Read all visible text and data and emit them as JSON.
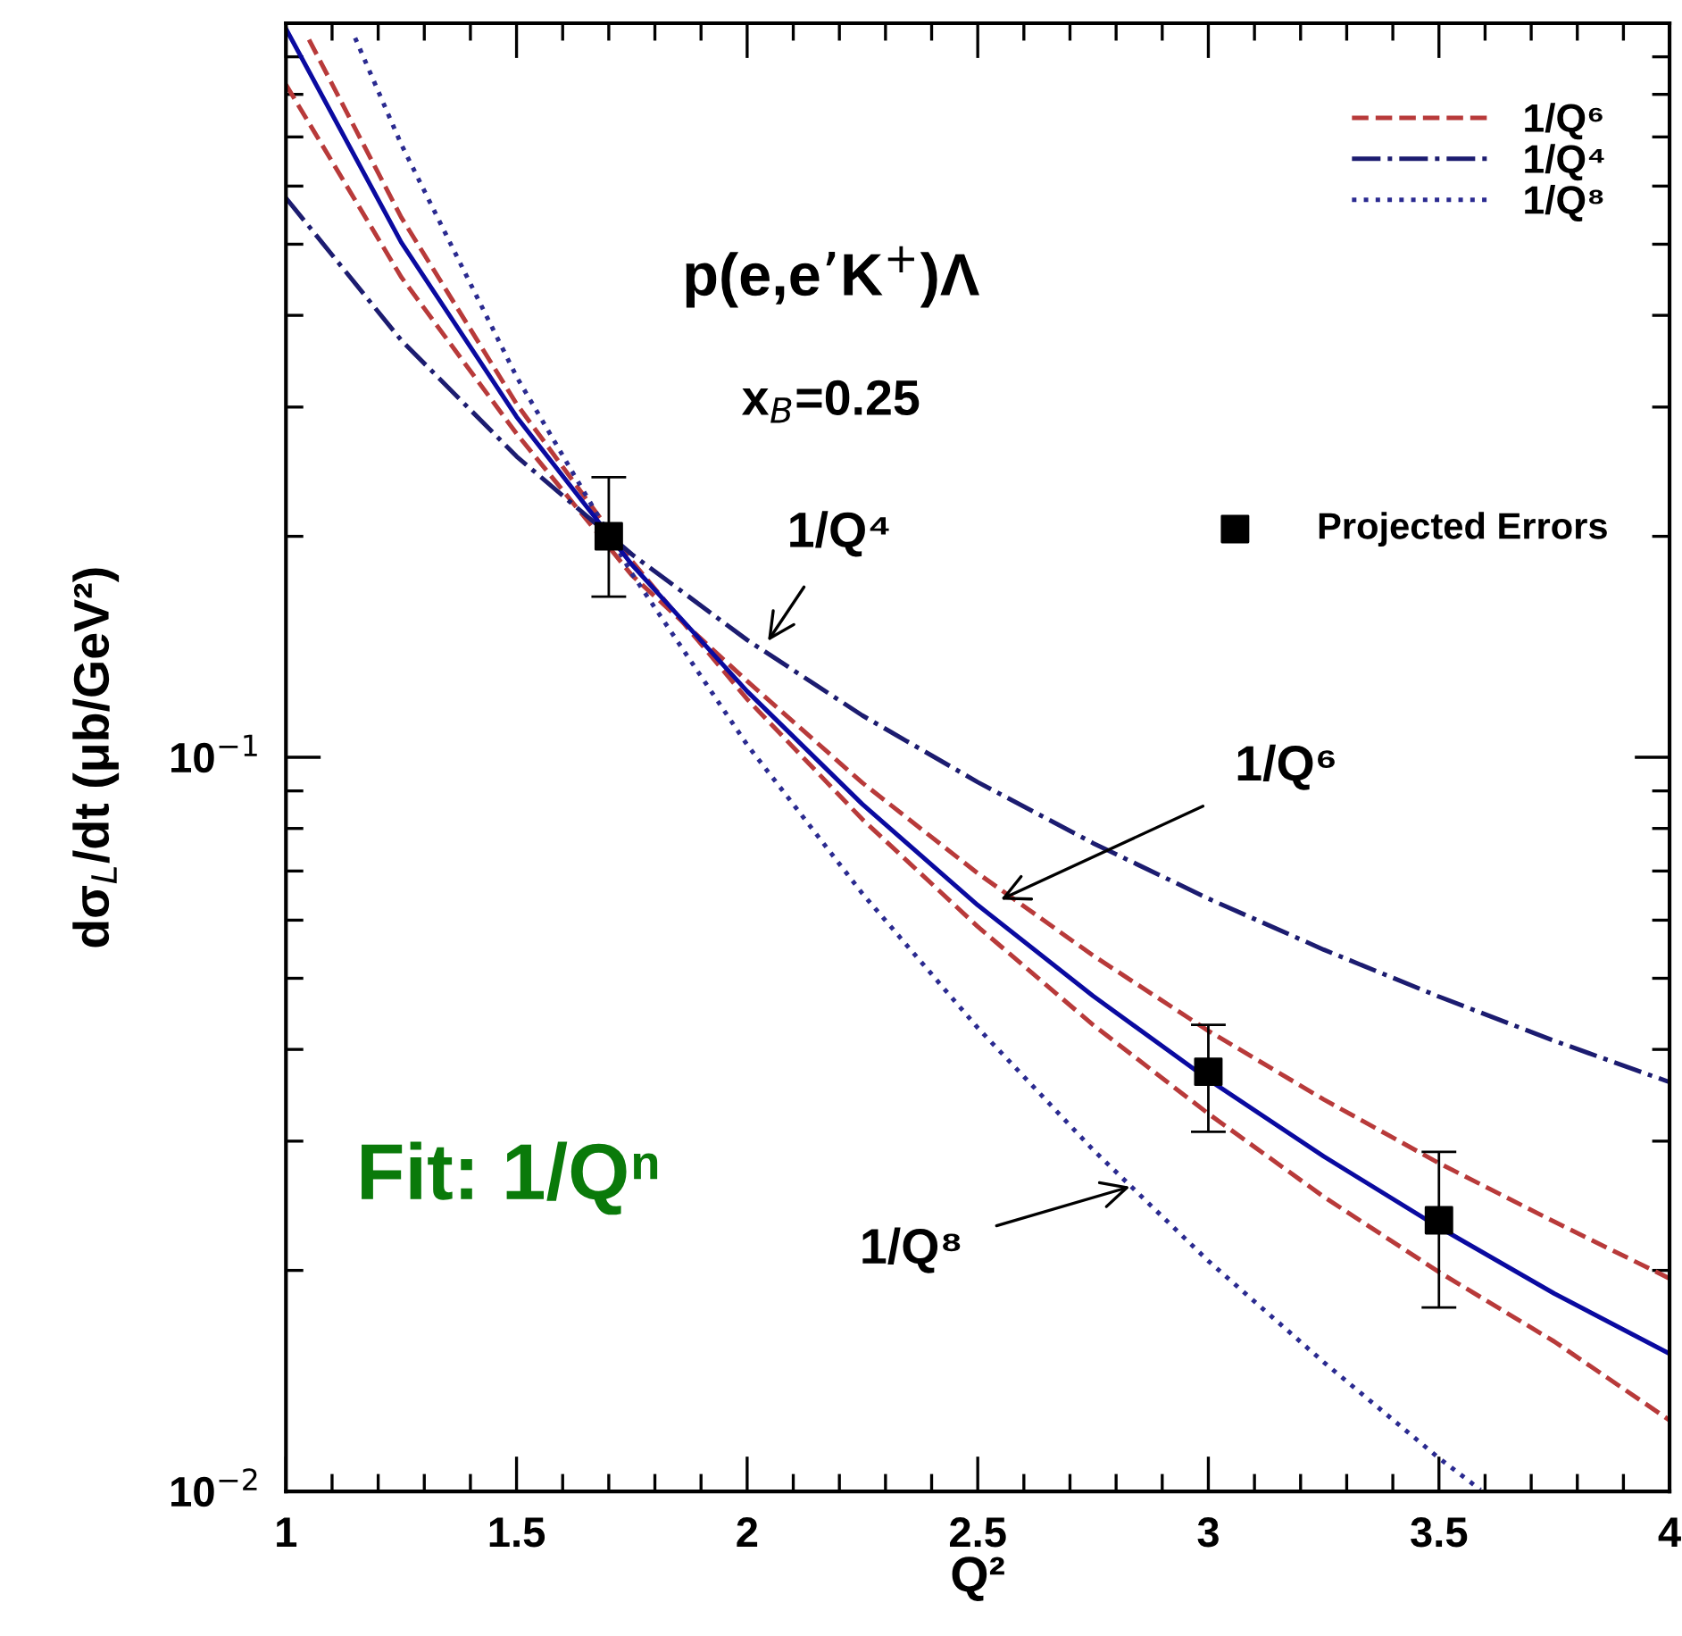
{
  "chart_data": {
    "type": "line",
    "xlabel": "Q²",
    "ylabel": "dσ$_{L}$/dt (μb/GeV²)",
    "log": "y",
    "xlim": [
      1,
      4
    ],
    "ylim": [
      0.01,
      1
    ],
    "xticks": [
      1,
      1.5,
      2,
      2.5,
      3,
      3.5,
      4
    ],
    "yticks": [
      {
        "value": 0.01,
        "label": "10$^{−2}$"
      },
      {
        "value": 0.1,
        "label": "10$^{−1}$"
      }
    ],
    "legend": "top right",
    "series": [
      {
        "name": "1/Q⁶",
        "color": "#b83a3a",
        "line_style": "dashed",
        "x": [
          1,
          1.25,
          1.5,
          1.75,
          2,
          2.25,
          2.5,
          2.75,
          3,
          3.25,
          3.5,
          3.75,
          4
        ],
        "values": [
          0.825,
          0.451,
          0.276,
          0.177,
          0.127,
          0.0923,
          0.0695,
          0.0537,
          0.0424,
          0.0342,
          0.028,
          0.0233,
          0.0195
        ]
      },
      {
        "color": "#b83a3a",
        "line_style": "dashed",
        "x": [
          1.05,
          1.25,
          1.5,
          1.75,
          2,
          2.25,
          2.5,
          2.75,
          3,
          3.25,
          3.5,
          3.75,
          4
        ],
        "values": [
          0.95,
          0.544,
          0.303,
          0.185,
          0.12,
          0.0823,
          0.0588,
          0.0432,
          0.0327,
          0.0252,
          0.0199,
          0.016,
          0.0125
        ]
      },
      {
        "name": "1/Q⁴",
        "color": "#1c1c70",
        "line_style": "dashdot",
        "x": [
          1,
          1.25,
          1.5,
          1.75,
          2,
          2.25,
          2.5,
          2.75,
          3,
          3.25,
          3.5,
          3.75,
          4
        ],
        "values": [
          0.578,
          0.37,
          0.257,
          0.189,
          0.1445,
          0.114,
          0.0925,
          0.0764,
          0.0642,
          0.0547,
          0.0472,
          0.0411,
          0.0361
        ]
      },
      {
        "name": "1/Q⁸",
        "color": "#2a2a90",
        "line_style": "dotted",
        "x": [
          1.15,
          1.25,
          1.5,
          1.75,
          2,
          2.25,
          2.5,
          2.75,
          3,
          3.25,
          3.5,
          3.59
        ],
        "values": [
          0.955,
          0.684,
          0.33,
          0.178,
          0.104,
          0.0652,
          0.0428,
          0.0292,
          0.0206,
          0.015,
          0.0111,
          0.01005
        ]
      },
      {
        "color": "#0a0aa0",
        "line_style": "solid",
        "x": [
          1,
          1.25,
          1.5,
          1.75,
          2,
          2.25,
          2.5,
          2.75,
          3,
          3.25,
          3.5,
          3.75,
          4
        ],
        "values": [
          0.983,
          0.503,
          0.291,
          0.183,
          0.123,
          0.0863,
          0.0629,
          0.0473,
          0.0364,
          0.0286,
          0.0229,
          0.0186,
          0.0154
        ]
      },
      {
        "name": "Projected Errors",
        "type": "scatter",
        "marker": "square",
        "color": "#000000",
        "x": [
          1.7,
          3,
          3.5
        ],
        "values": [
          0.2,
          0.0373,
          0.0234
        ],
        "errors": [
          [
            0.1655,
            0.2407
          ],
          [
            0.0309,
            0.0432
          ],
          [
            0.0178,
            0.029
          ]
        ]
      }
    ],
    "annotations": [
      "p(e,e’K$^{+}$)Λ",
      "x$_{B}$=0.25",
      {
        "text": "1/Q⁴",
        "x": 2.045,
        "y": 0.144
      },
      {
        "text": "1/Q⁶",
        "x": 2.55,
        "y": 0.064
      },
      {
        "text": "1/Q⁸",
        "x": 2.83,
        "y": 0.026
      },
      "Fit: 1/Qⁿ"
    ]
  }
}
